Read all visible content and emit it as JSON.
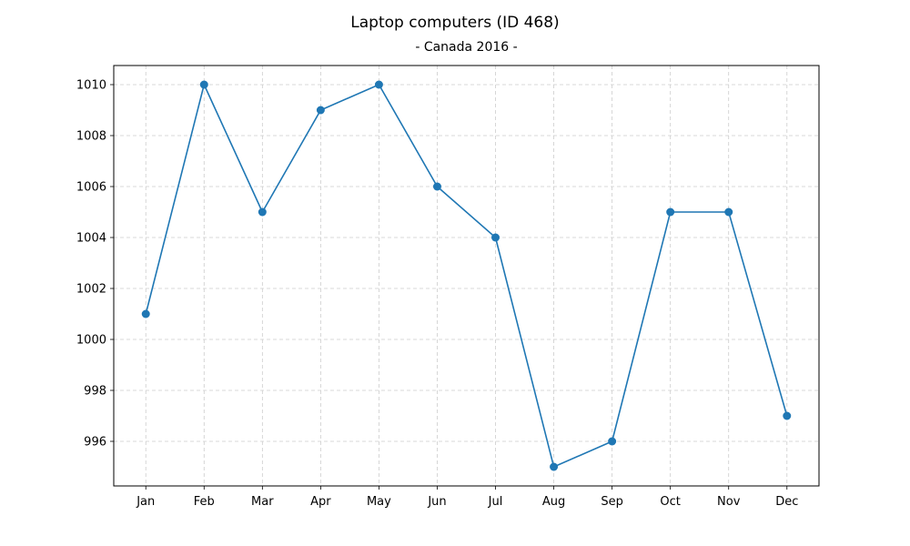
{
  "chart_data": {
    "type": "line",
    "title": "Laptop computers (ID 468)",
    "subtitle": "- Canada 2016 -",
    "xlabel": "",
    "ylabel": "",
    "categories": [
      "Jan",
      "Feb",
      "Mar",
      "Apr",
      "May",
      "Jun",
      "Jul",
      "Aug",
      "Sep",
      "Oct",
      "Nov",
      "Dec"
    ],
    "series": [
      {
        "values": [
          1001,
          1010,
          1005,
          1009,
          1010,
          1006,
          1004,
          995,
          996,
          1005,
          1005,
          997
        ]
      }
    ],
    "y_ticks": [
      996,
      998,
      1000,
      1002,
      1004,
      1006,
      1008,
      1010
    ],
    "ylim": [
      994.25,
      1010.75
    ],
    "grid": true,
    "legend": "none",
    "colors": {
      "line": "#1f77b4",
      "marker": "#1f77b4",
      "grid": "#cccccc"
    }
  }
}
